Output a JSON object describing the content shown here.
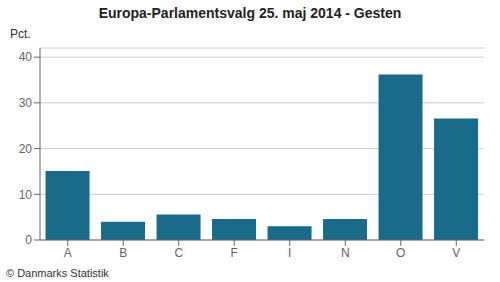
{
  "chart_data": {
    "type": "bar",
    "title": "Europa-Parlamentsvalg 25. maj 2014 - Gesten",
    "categories": [
      "A",
      "B",
      "C",
      "F",
      "I",
      "N",
      "O",
      "V"
    ],
    "values": [
      15.1,
      4.0,
      5.6,
      4.6,
      3.0,
      4.6,
      36.2,
      26.6
    ],
    "color": "#1a6b8a",
    "ylabel": "Pct.",
    "annotations": [
      "© Danmarks Statistik"
    ],
    "ylim": [
      0,
      42
    ],
    "yticks": [
      0,
      10,
      20,
      30,
      40
    ],
    "grid": true
  }
}
